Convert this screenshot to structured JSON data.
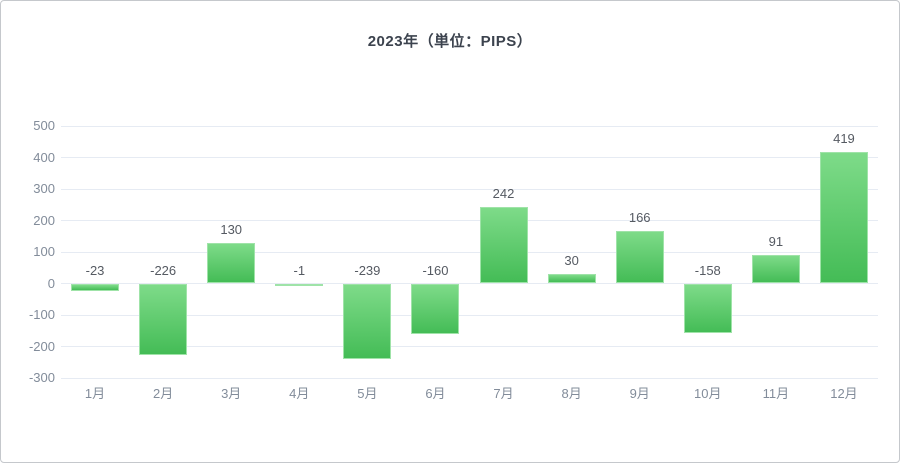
{
  "chart_data": {
    "type": "bar",
    "title": "2023年（単位：PIPS）",
    "categories": [
      "1月",
      "2月",
      "3月",
      "4月",
      "5月",
      "6月",
      "7月",
      "8月",
      "9月",
      "10月",
      "11月",
      "12月"
    ],
    "values": [
      -23,
      -226,
      130,
      -1,
      -239,
      -160,
      242,
      30,
      166,
      -158,
      91,
      419
    ],
    "xlabel": "",
    "ylabel": "",
    "ylim": [
      -300,
      500
    ],
    "y_ticks": [
      500,
      400,
      300,
      200,
      100,
      0,
      -100,
      -200,
      -300
    ],
    "grid": true,
    "legend": "none",
    "value_labels_shown": true,
    "colors": {
      "bar_gradient_top": "#7edb89",
      "bar_gradient_bottom": "#44bc56",
      "bar_border": "#9fe3a8",
      "gridline": "#e6ebf3",
      "axis_label": "#828c9a",
      "value_label": "#555a62",
      "title": "#3c434e"
    }
  }
}
